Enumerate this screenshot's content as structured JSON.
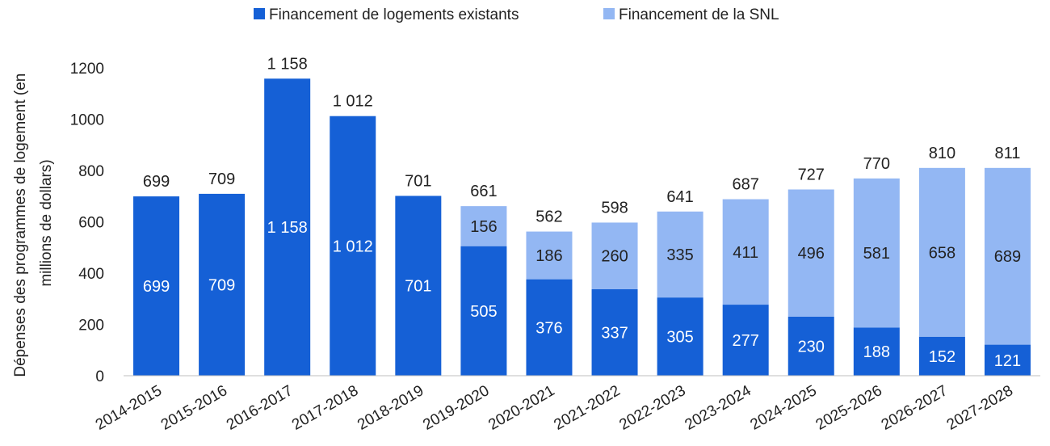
{
  "chart_data": {
    "type": "bar",
    "stacked": true,
    "categories": [
      "2014-2015",
      "2015-2016",
      "2016-2017",
      "2017-2018",
      "2018-2019",
      "2019-2020",
      "2020-2021",
      "2021-2022",
      "2022-2023",
      "2023-2024",
      "2024-2025",
      "2025-2026",
      "2026-2027",
      "2027-2028"
    ],
    "series": [
      {
        "name": "Financement de logements existants",
        "color": "#1560d6",
        "values": [
          699,
          709,
          1158,
          1012,
          701,
          505,
          376,
          337,
          305,
          277,
          230,
          188,
          152,
          121
        ],
        "labels": [
          "699",
          "709",
          "1 158",
          "1 012",
          "701",
          "505",
          "376",
          "337",
          "305",
          "277",
          "230",
          "188",
          "152",
          "121"
        ]
      },
      {
        "name": "Financement de la SNL",
        "color": "#93b7f3",
        "values": [
          0,
          0,
          0,
          0,
          0,
          156,
          186,
          260,
          335,
          411,
          496,
          581,
          658,
          689
        ],
        "labels": [
          "",
          "",
          "",
          "",
          "",
          "156",
          "186",
          "260",
          "335",
          "411",
          "496",
          "581",
          "658",
          "689"
        ]
      }
    ],
    "totals": [
      699,
      709,
      1158,
      1012,
      701,
      661,
      562,
      598,
      641,
      687,
      727,
      770,
      810,
      811
    ],
    "total_labels": [
      "699",
      "709",
      "1 158",
      "1 012",
      "701",
      "661",
      "562",
      "598",
      "641",
      "687",
      "727",
      "770",
      "810",
      "811"
    ],
    "ylabel": "Dépenses des programmes de logement (en millions de dollars)",
    "ylabel_lines": [
      "Dépenses des programmes de logement (en",
      "millions de dollars)"
    ],
    "yticks": [
      0,
      200,
      400,
      600,
      800,
      1000,
      1200
    ],
    "ylim": [
      0,
      1200
    ],
    "grid": false,
    "legend_position": "top"
  }
}
